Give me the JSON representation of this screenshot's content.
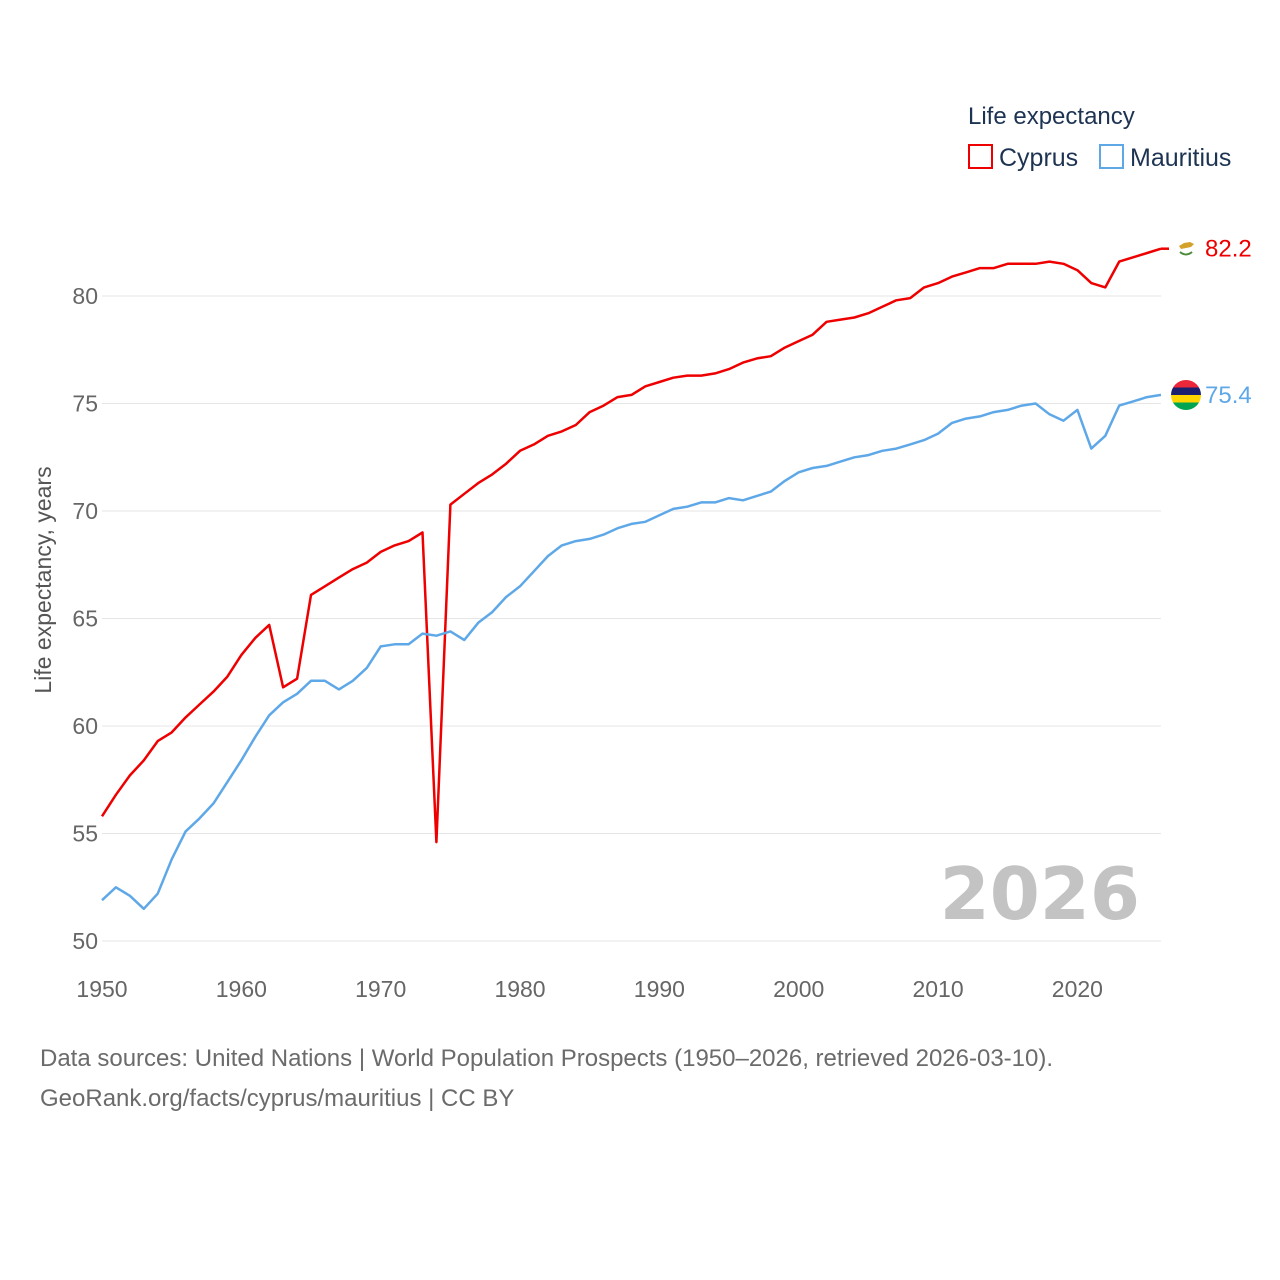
{
  "chart_data": {
    "type": "line",
    "title": "",
    "ylabel": "Life expectancy, years",
    "xlabel": "",
    "xlim": [
      1950,
      2026
    ],
    "ylim": [
      50,
      84
    ],
    "xticks": [
      1950,
      1960,
      1970,
      1980,
      1990,
      2000,
      2010,
      2020
    ],
    "yticks": [
      50,
      55,
      60,
      65,
      70,
      75,
      80
    ],
    "year_label": "2026",
    "legend_title": "Life expectancy",
    "legend_position": "top-right",
    "x": [
      1950,
      1951,
      1952,
      1953,
      1954,
      1955,
      1956,
      1957,
      1958,
      1959,
      1960,
      1961,
      1962,
      1963,
      1964,
      1965,
      1966,
      1967,
      1968,
      1969,
      1970,
      1971,
      1972,
      1973,
      1974,
      1975,
      1976,
      1977,
      1978,
      1979,
      1980,
      1981,
      1982,
      1983,
      1984,
      1985,
      1986,
      1987,
      1988,
      1989,
      1990,
      1991,
      1992,
      1993,
      1994,
      1995,
      1996,
      1997,
      1998,
      1999,
      2000,
      2001,
      2002,
      2003,
      2004,
      2005,
      2006,
      2007,
      2008,
      2009,
      2010,
      2011,
      2012,
      2013,
      2014,
      2015,
      2016,
      2017,
      2018,
      2019,
      2020,
      2021,
      2022,
      2023,
      2024,
      2025,
      2026
    ],
    "series": [
      {
        "name": "Cyprus",
        "color": "#ee0000",
        "end_label": "82.2",
        "flag": "cyprus-flag",
        "values": [
          55.8,
          56.8,
          57.7,
          58.4,
          59.3,
          59.7,
          60.4,
          61.0,
          61.6,
          62.3,
          63.3,
          64.1,
          64.7,
          61.8,
          62.2,
          66.1,
          66.5,
          66.9,
          67.3,
          67.6,
          68.1,
          68.4,
          68.6,
          69.0,
          54.6,
          70.3,
          70.8,
          71.3,
          71.7,
          72.2,
          72.8,
          73.1,
          73.5,
          73.7,
          74.0,
          74.6,
          74.9,
          75.3,
          75.4,
          75.8,
          76.0,
          76.2,
          76.3,
          76.3,
          76.4,
          76.6,
          76.9,
          77.1,
          77.2,
          77.6,
          77.9,
          78.2,
          78.8,
          78.9,
          79.0,
          79.2,
          79.5,
          79.8,
          79.9,
          80.4,
          80.6,
          80.9,
          81.1,
          81.3,
          81.3,
          81.5,
          81.5,
          81.5,
          81.6,
          81.5,
          81.2,
          80.6,
          80.4,
          81.6,
          81.8,
          82.0,
          82.2
        ]
      },
      {
        "name": "Mauritius",
        "color": "#5fa8e8",
        "end_label": "75.4",
        "flag": "mauritius-flag",
        "values": [
          51.9,
          52.5,
          52.1,
          51.5,
          52.2,
          53.8,
          55.1,
          55.7,
          56.4,
          57.4,
          58.4,
          59.5,
          60.5,
          61.1,
          61.5,
          62.1,
          62.1,
          61.7,
          62.1,
          62.7,
          63.7,
          63.8,
          63.8,
          64.3,
          64.2,
          64.4,
          64.0,
          64.8,
          65.3,
          66.0,
          66.5,
          67.2,
          67.9,
          68.4,
          68.6,
          68.7,
          68.9,
          69.2,
          69.4,
          69.5,
          69.8,
          70.1,
          70.2,
          70.4,
          70.4,
          70.6,
          70.5,
          70.7,
          70.9,
          71.4,
          71.8,
          72.0,
          72.1,
          72.3,
          72.5,
          72.6,
          72.8,
          72.9,
          73.1,
          73.3,
          73.6,
          74.1,
          74.3,
          74.4,
          74.6,
          74.7,
          74.9,
          75.0,
          74.5,
          74.2,
          74.7,
          72.9,
          73.5,
          74.9,
          75.1,
          75.3,
          75.4
        ]
      }
    ]
  },
  "footer": {
    "line1": "Data sources: United Nations | World Population Prospects (1950–2026, retrieved 2026-03-10).",
    "line2": "GeoRank.org/facts/cyprus/mauritius | CC BY"
  }
}
